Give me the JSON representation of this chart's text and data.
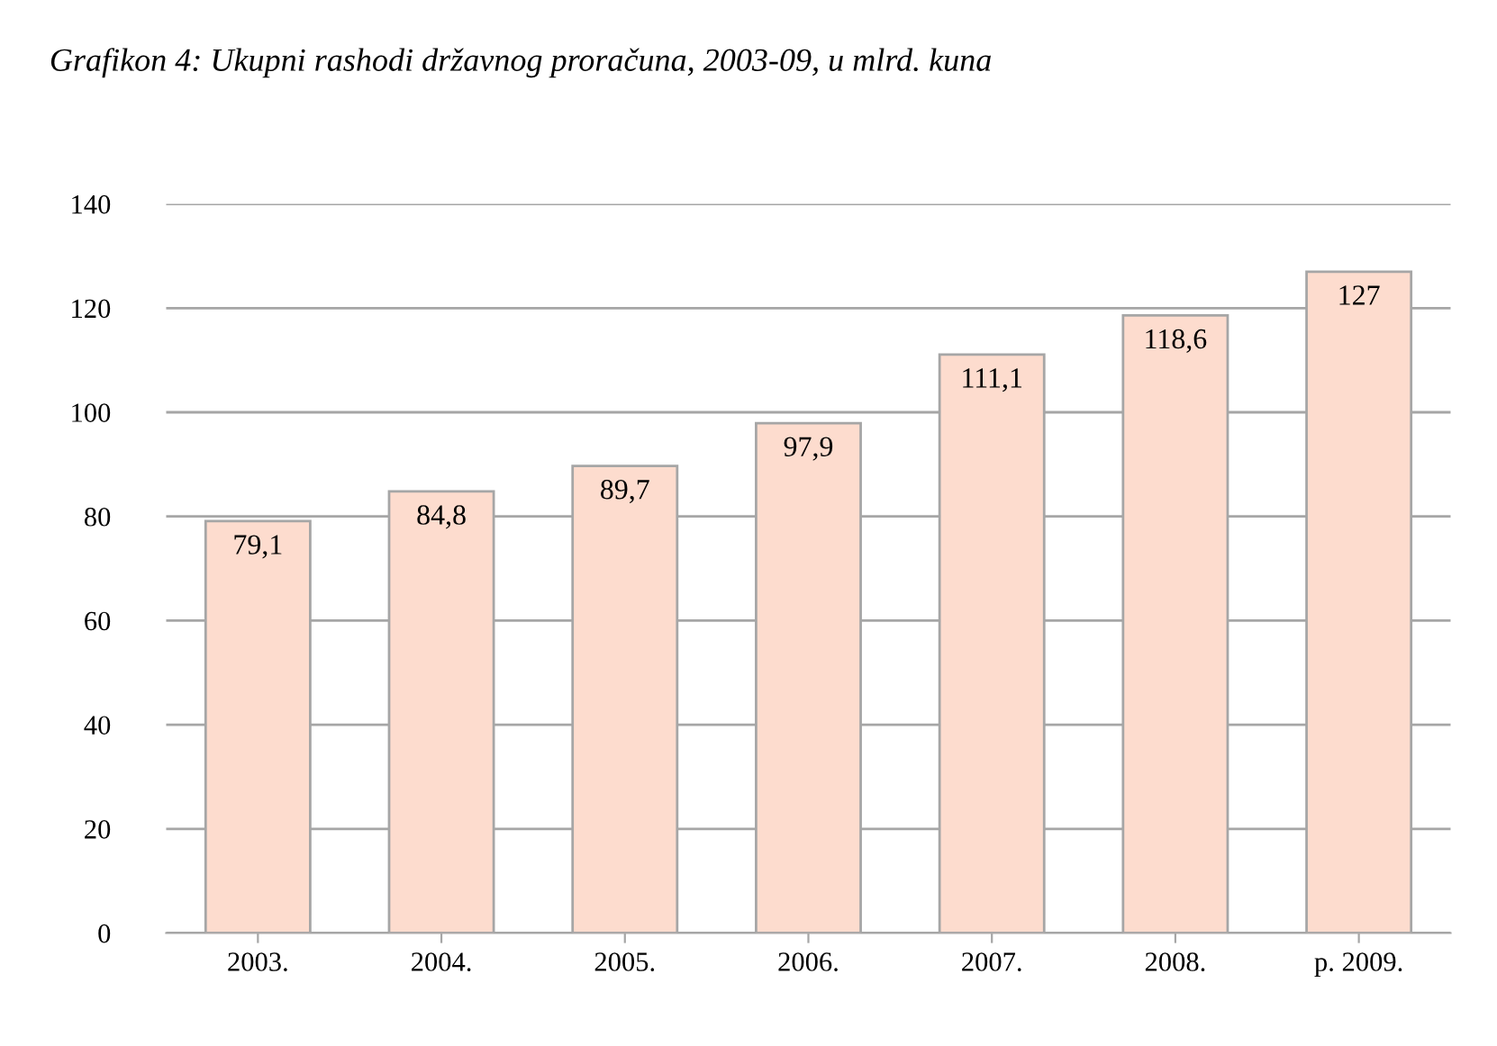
{
  "chart_data": {
    "type": "bar",
    "title": "Grafikon 4: Ukupni rashodi državnog proračuna, 2003-09, u mlrd. kuna",
    "categories": [
      "2003.",
      "2004.",
      "2005.",
      "2006.",
      "2007.",
      "2008.",
      "p. 2009."
    ],
    "values": [
      79.1,
      84.8,
      89.7,
      97.9,
      111.1,
      118.6,
      127
    ],
    "value_labels": [
      "79,1",
      "84,8",
      "89,7",
      "97,9",
      "111,1",
      "118,6",
      "127"
    ],
    "color": "#fddcce",
    "ylim": [
      0,
      140
    ],
    "yticks": [
      0,
      20,
      40,
      60,
      80,
      100,
      120,
      140
    ],
    "grid": "y"
  }
}
